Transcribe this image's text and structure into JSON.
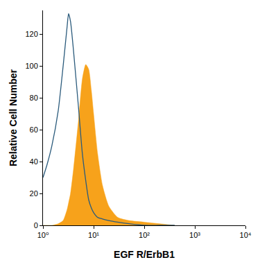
{
  "chart_data": {
    "type": "line",
    "x_label": "EGF R/ErbB1",
    "y_label": "Relative Cell Number",
    "log": "x",
    "grid": false,
    "x": [
      1,
      1.2,
      1.5,
      2,
      2.5,
      3,
      3.2,
      3.5,
      4,
      5,
      6,
      7,
      8,
      9,
      10,
      12,
      15,
      20,
      30,
      50,
      100,
      200,
      400
    ],
    "series": [
      {
        "type": "area",
        "color": "#f7a21b",
        "values": [
          0,
          0,
          0,
          1,
          3,
          10,
          14,
          20,
          35,
          65,
          92,
          101,
          98,
          85,
          70,
          45,
          25,
          12,
          5,
          3,
          2,
          1,
          0
        ]
      },
      {
        "type": "line",
        "color": "#2b5b7c",
        "values": [
          30,
          38,
          50,
          72,
          100,
          125,
          133,
          128,
          110,
          75,
          45,
          28,
          16,
          11,
          8,
          5,
          4,
          3,
          2,
          1,
          0,
          0,
          0
        ]
      }
    ],
    "xlim": [
      1,
      10000
    ],
    "xticks": [
      {
        "value": 1,
        "label": "10⁰"
      },
      {
        "value": 10,
        "label": "10¹"
      },
      {
        "value": 100,
        "label": "10²"
      },
      {
        "value": 1000,
        "label": "10³"
      },
      {
        "value": 10000,
        "label": "10⁴"
      }
    ],
    "ylim": [
      0,
      135
    ],
    "yticks": [
      0,
      20,
      40,
      60,
      80,
      100,
      120
    ]
  }
}
